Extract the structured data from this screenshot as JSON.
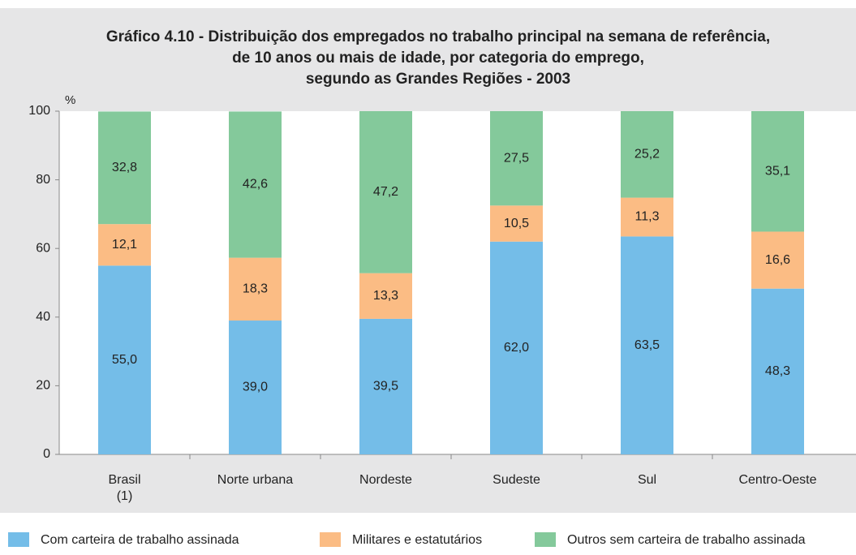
{
  "chart_data": {
    "type": "stacked_bar",
    "title": [
      "Gráfico 4.10 - Distribuição dos empregados no trabalho principal na semana de referência,",
      "de 10 anos ou mais de idade, por categoria do emprego,",
      "segundo as Grandes Regiões - 2003"
    ],
    "y_label": "%",
    "categories": [
      "Brasil\n(1)",
      "Norte urbana",
      "Nordeste",
      "Sudeste",
      "Sul",
      "Centro-Oeste"
    ],
    "series": [
      {
        "name": "Com carteira de trabalho assinada",
        "color": "#74bde8",
        "values": [
          55.0,
          39.0,
          39.5,
          62.0,
          63.5,
          48.3
        ],
        "value_labels": [
          "55,0",
          "39,0",
          "39,5",
          "62,0",
          "63,5",
          "48,3"
        ]
      },
      {
        "name": "Militares e estatutários",
        "color": "#fbbc84",
        "values": [
          12.1,
          18.3,
          13.3,
          10.5,
          11.3,
          16.6
        ],
        "value_labels": [
          "12,1",
          "18,3",
          "13,3",
          "10,5",
          "11,3",
          "16,6"
        ]
      },
      {
        "name": "Outros sem carteira de trabalho assinada",
        "color": "#84c99b",
        "values": [
          32.8,
          42.6,
          47.2,
          27.5,
          25.2,
          35.1
        ],
        "value_labels": [
          "32,8",
          "42,6",
          "47,2",
          "27,5",
          "25,2",
          "35,1"
        ]
      }
    ],
    "ylim": [
      0,
      100
    ],
    "yticks": [
      0,
      20,
      40,
      60,
      80,
      100
    ],
    "grid": false,
    "legend": "bottom"
  }
}
